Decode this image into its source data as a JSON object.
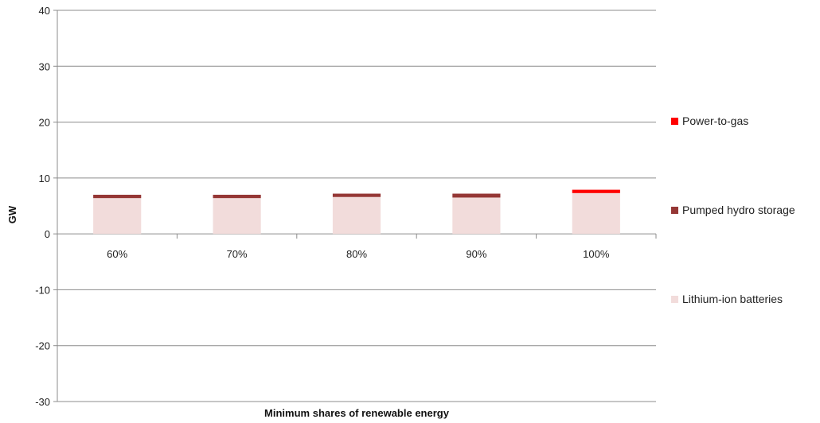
{
  "chart_data": {
    "type": "bar",
    "stacked": true,
    "categories": [
      "60%",
      "70%",
      "80%",
      "90%",
      "100%"
    ],
    "series": [
      {
        "name": "Lithium-ion batteries",
        "color": "#f2dcdb",
        "values": [
          6.4,
          6.4,
          6.6,
          6.5,
          7.3
        ]
      },
      {
        "name": "Pumped hydro storage",
        "color": "#953735",
        "values": [
          0.6,
          0.6,
          0.6,
          0.7,
          0.0
        ]
      },
      {
        "name": "Power-to-gas",
        "color": "#ff0000",
        "values": [
          0.0,
          0.0,
          0.0,
          0.0,
          0.6
        ]
      }
    ],
    "legend_order": [
      "Power-to-gas",
      "Pumped hydro storage",
      "Lithium-ion batteries"
    ],
    "legend_position": "right",
    "xlabel": "Minimum shares of renewable energy",
    "ylabel": "GW",
    "ylim": [
      -30,
      40
    ],
    "yticks": [
      -30,
      -20,
      -10,
      0,
      10,
      20,
      30,
      40
    ],
    "grid": true
  }
}
